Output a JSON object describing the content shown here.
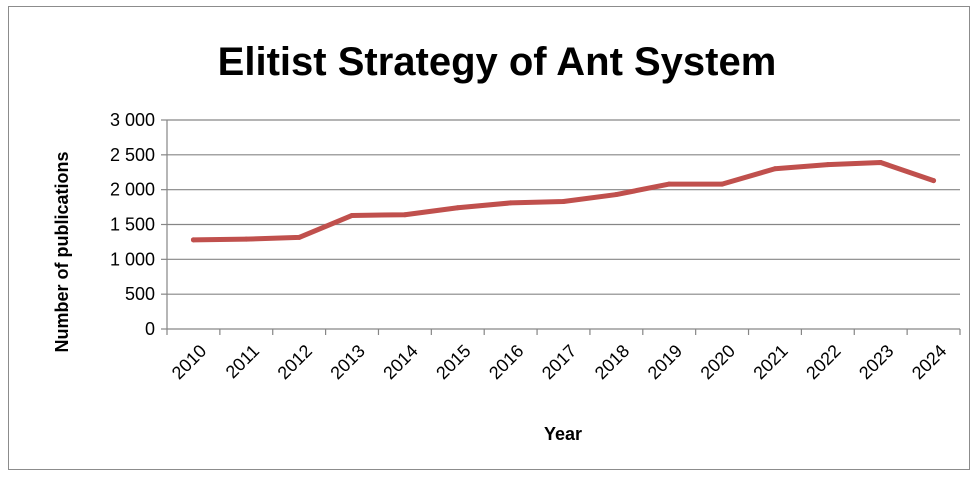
{
  "chart_data": {
    "type": "line",
    "title": "Elitist Strategy of Ant System",
    "xlabel": "Year",
    "ylabel": "Number of publications",
    "categories": [
      "2010",
      "2011",
      "2012",
      "2013",
      "2014",
      "2015",
      "2016",
      "2017",
      "2018",
      "2019",
      "2020",
      "2021",
      "2022",
      "2023",
      "2024"
    ],
    "series": [
      {
        "values": [
          1280,
          1290,
          1315,
          1630,
          1640,
          1740,
          1810,
          1830,
          1930,
          2080,
          2080,
          2300,
          2360,
          2390,
          2130
        ]
      }
    ],
    "ylim": [
      0,
      3000
    ],
    "yticks": [
      0,
      500,
      1000,
      1500,
      2000,
      2500,
      3000
    ],
    "ytick_labels": [
      "0",
      "500",
      "1 000",
      "1 500",
      "2 000",
      "2 500",
      "3 000"
    ],
    "grid": "horizontal",
    "legend": "none",
    "line_color": "#c0504d"
  }
}
